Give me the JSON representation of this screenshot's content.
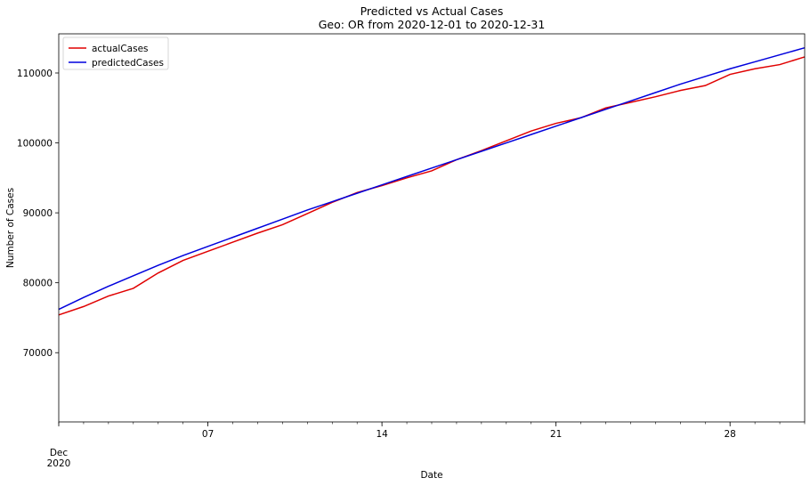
{
  "chart_data": {
    "type": "line",
    "title": "Predicted vs Actual Cases",
    "subtitle": "Geo: OR from 2020-12-01 to 2020-12-31",
    "xlabel": "Date",
    "ylabel": "Number of Cases",
    "x": [
      "2020-12-01",
      "2020-12-02",
      "2020-12-03",
      "2020-12-04",
      "2020-12-05",
      "2020-12-06",
      "2020-12-07",
      "2020-12-08",
      "2020-12-09",
      "2020-12-10",
      "2020-12-11",
      "2020-12-12",
      "2020-12-13",
      "2020-12-14",
      "2020-12-15",
      "2020-12-16",
      "2020-12-17",
      "2020-12-18",
      "2020-12-19",
      "2020-12-20",
      "2020-12-21",
      "2020-12-22",
      "2020-12-23",
      "2020-12-24",
      "2020-12-25",
      "2020-12-26",
      "2020-12-27",
      "2020-12-28",
      "2020-12-29",
      "2020-12-30",
      "2020-12-31"
    ],
    "series": [
      {
        "name": "actualCases",
        "color": "#e00000",
        "values": [
          75400,
          76600,
          78100,
          79200,
          81400,
          83200,
          84500,
          85800,
          87100,
          88300,
          89900,
          91500,
          92900,
          93900,
          95000,
          96000,
          97600,
          98900,
          100300,
          101700,
          102800,
          103600,
          105000,
          105800,
          106600,
          107500,
          108200,
          109800,
          110600,
          111200,
          112300
        ]
      },
      {
        "name": "predictedCases",
        "color": "#0000dd",
        "values": [
          76200,
          77900,
          79500,
          81000,
          82500,
          83900,
          85200,
          86500,
          87800,
          89100,
          90400,
          91600,
          92800,
          94000,
          95200,
          96400,
          97600,
          98800,
          100000,
          101200,
          102400,
          103600,
          104800,
          106000,
          107200,
          108400,
          109500,
          110600,
          111600,
          112600,
          113600
        ]
      }
    ],
    "xticks": [
      {
        "date": "2020-12-01",
        "label": "Dec",
        "label2": "2020"
      },
      {
        "date": "2020-12-07",
        "label": "07"
      },
      {
        "date": "2020-12-14",
        "label": "14"
      },
      {
        "date": "2020-12-21",
        "label": "21"
      },
      {
        "date": "2020-12-28",
        "label": "28"
      }
    ],
    "yticks": [
      70000,
      80000,
      90000,
      100000,
      110000
    ],
    "ylim": [
      60100,
      115600
    ],
    "xlim": [
      "2020-12-01",
      "2020-12-31"
    ],
    "grid": false,
    "legend": "top-left"
  }
}
